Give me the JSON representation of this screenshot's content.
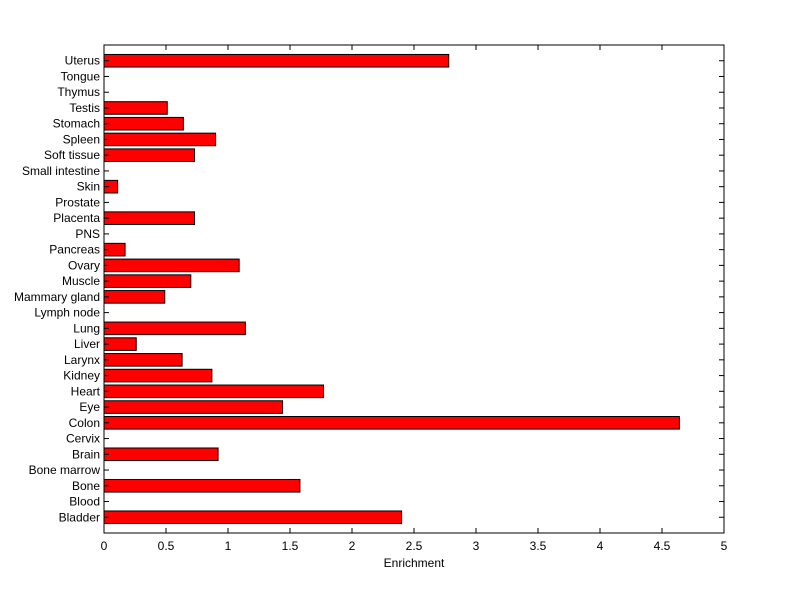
{
  "chart_data": {
    "type": "bar",
    "orientation": "horizontal",
    "title": "",
    "xlabel": "Enrichment",
    "ylabel": "",
    "xlim": [
      0,
      5
    ],
    "xticks": [
      "0",
      "0.5",
      "1",
      "1.5",
      "2",
      "2.5",
      "3",
      "3.5",
      "4",
      "4.5",
      "5"
    ],
    "grid": false,
    "bar_color": "#ff0000",
    "categories": [
      "Bladder",
      "Blood",
      "Bone",
      "Bone marrow",
      "Brain",
      "Cervix",
      "Colon",
      "Eye",
      "Heart",
      "Kidney",
      "Larynx",
      "Liver",
      "Lung",
      "Lymph node",
      "Mammary gland",
      "Muscle",
      "Ovary",
      "Pancreas",
      "PNS",
      "Placenta",
      "Prostate",
      "Skin",
      "Small intestine",
      "Soft tissue",
      "Spleen",
      "Stomach",
      "Testis",
      "Thymus",
      "Tongue",
      "Uterus"
    ],
    "values": [
      2.4,
      0,
      1.58,
      0,
      0.92,
      0,
      4.64,
      1.44,
      1.77,
      0.87,
      0.63,
      0.26,
      1.14,
      0,
      0.49,
      0.7,
      1.09,
      0.17,
      0,
      0.73,
      0,
      0.11,
      0,
      0.73,
      0.9,
      0.64,
      0.51,
      0,
      0,
      2.78
    ]
  }
}
